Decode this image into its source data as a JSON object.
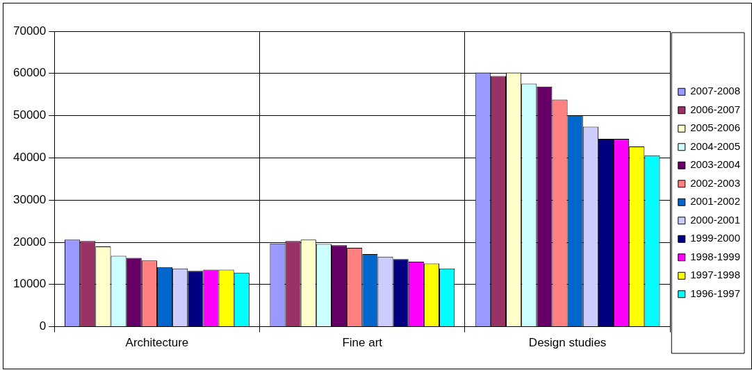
{
  "chart_data": {
    "type": "bar",
    "categories": [
      "Architecture",
      "Fine art",
      "Design studies"
    ],
    "series": [
      {
        "name": "2007-2008",
        "color": "#9999ff",
        "values": [
          20600,
          19700,
          60200
        ]
      },
      {
        "name": "2006-2007",
        "color": "#993366",
        "values": [
          20300,
          20300,
          59400
        ]
      },
      {
        "name": "2005-2006",
        "color": "#ffffcc",
        "values": [
          19000,
          20600,
          60200
        ]
      },
      {
        "name": "2004-2005",
        "color": "#ccffff",
        "values": [
          16800,
          19600,
          57600
        ]
      },
      {
        "name": "2003-2004",
        "color": "#660066",
        "values": [
          16300,
          19300,
          56900
        ]
      },
      {
        "name": "2002-2003",
        "color": "#ff8080",
        "values": [
          15700,
          18700,
          53800
        ]
      },
      {
        "name": "2001-2002",
        "color": "#0066cc",
        "values": [
          14100,
          17200,
          50100
        ]
      },
      {
        "name": "2000-2001",
        "color": "#ccccff",
        "values": [
          13800,
          16600,
          47400
        ]
      },
      {
        "name": "1999-2000",
        "color": "#000080",
        "values": [
          13200,
          16000,
          44500
        ]
      },
      {
        "name": "1998-1999",
        "color": "#ff00ff",
        "values": [
          13500,
          15400,
          44500
        ]
      },
      {
        "name": "1997-1998",
        "color": "#ffff00",
        "values": [
          13500,
          15000,
          42700
        ]
      },
      {
        "name": "1996-1997",
        "color": "#00ffff",
        "values": [
          12800,
          13800,
          40600
        ]
      }
    ],
    "ylim": [
      0,
      70000
    ],
    "yticks": [
      0,
      10000,
      20000,
      30000,
      40000,
      50000,
      60000,
      70000
    ],
    "grid": true,
    "legend": "right"
  }
}
